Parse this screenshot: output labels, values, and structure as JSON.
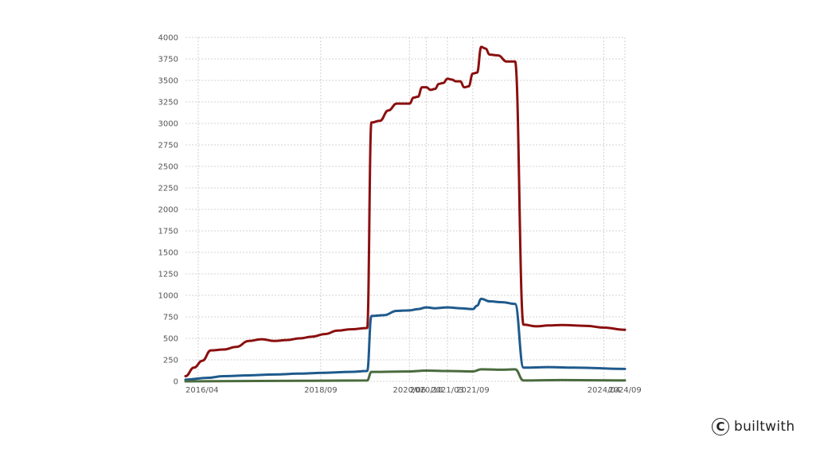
{
  "chart_data": {
    "type": "line",
    "title": "",
    "xlabel": "",
    "ylabel": "",
    "ylim": [
      0,
      4000
    ],
    "yticks": [
      0,
      250,
      500,
      750,
      1000,
      1250,
      1500,
      1750,
      2000,
      2250,
      2500,
      2750,
      3000,
      3250,
      3500,
      3750,
      4000
    ],
    "xlim": [
      "2016-01",
      "2024-09"
    ],
    "xticks": [
      {
        "label": "2016/04",
        "date": "2016-04"
      },
      {
        "label": "2018/09",
        "date": "2018-09"
      },
      {
        "label": "2020/06",
        "date": "2020-06"
      },
      {
        "label": "2020/10",
        "date": "2020-10"
      },
      {
        "label": "2021/03",
        "date": "2021-03"
      },
      {
        "label": "2021/09",
        "date": "2021-09"
      },
      {
        "label": "2024/04",
        "date": "2024-04"
      },
      {
        "label": "2024/09",
        "date": "2024-09"
      }
    ],
    "grid": true,
    "legend": "none",
    "series": [
      {
        "color": "#8b0f0f",
        "points": [
          [
            "2016-01",
            60
          ],
          [
            "2016-03",
            160
          ],
          [
            "2016-05",
            240
          ],
          [
            "2016-07",
            360
          ],
          [
            "2016-10",
            370
          ],
          [
            "2017-01",
            400
          ],
          [
            "2017-04",
            470
          ],
          [
            "2017-07",
            490
          ],
          [
            "2017-10",
            470
          ],
          [
            "2018-01",
            480
          ],
          [
            "2018-04",
            500
          ],
          [
            "2018-07",
            520
          ],
          [
            "2018-10",
            550
          ],
          [
            "2019-01",
            590
          ],
          [
            "2019-04",
            605
          ],
          [
            "2019-08",
            620
          ],
          [
            "2019-09",
            3010
          ],
          [
            "2019-11",
            3030
          ],
          [
            "2020-01",
            3150
          ],
          [
            "2020-03",
            3230
          ],
          [
            "2020-06",
            3230
          ],
          [
            "2020-07",
            3300
          ],
          [
            "2020-08",
            3310
          ],
          [
            "2020-09",
            3420
          ],
          [
            "2020-10",
            3420
          ],
          [
            "2020-11",
            3390
          ],
          [
            "2020-12",
            3400
          ],
          [
            "2021-01",
            3460
          ],
          [
            "2021-02",
            3470
          ],
          [
            "2021-03",
            3520
          ],
          [
            "2021-04",
            3510
          ],
          [
            "2021-05",
            3490
          ],
          [
            "2021-06",
            3490
          ],
          [
            "2021-07",
            3420
          ],
          [
            "2021-08",
            3430
          ],
          [
            "2021-09",
            3580
          ],
          [
            "2021-10",
            3590
          ],
          [
            "2021-11",
            3890
          ],
          [
            "2021-12",
            3870
          ],
          [
            "2022-01",
            3800
          ],
          [
            "2022-03",
            3790
          ],
          [
            "2022-05",
            3720
          ],
          [
            "2022-07",
            3720
          ],
          [
            "2022-09",
            660
          ],
          [
            "2022-12",
            640
          ],
          [
            "2023-03",
            650
          ],
          [
            "2023-06",
            655
          ],
          [
            "2023-12",
            645
          ],
          [
            "2024-04",
            625
          ],
          [
            "2024-09",
            600
          ]
        ]
      },
      {
        "color": "#1f5a8c",
        "points": [
          [
            "2016-01",
            20
          ],
          [
            "2016-06",
            40
          ],
          [
            "2016-10",
            60
          ],
          [
            "2017-04",
            70
          ],
          [
            "2017-10",
            80
          ],
          [
            "2018-04",
            90
          ],
          [
            "2018-10",
            100
          ],
          [
            "2019-04",
            110
          ],
          [
            "2019-08",
            120
          ],
          [
            "2019-09",
            760
          ],
          [
            "2019-12",
            770
          ],
          [
            "2020-03",
            820
          ],
          [
            "2020-06",
            825
          ],
          [
            "2020-08",
            840
          ],
          [
            "2020-10",
            860
          ],
          [
            "2020-12",
            850
          ],
          [
            "2021-03",
            860
          ],
          [
            "2021-06",
            850
          ],
          [
            "2021-09",
            840
          ],
          [
            "2021-10",
            880
          ],
          [
            "2021-11",
            960
          ],
          [
            "2022-01",
            930
          ],
          [
            "2022-04",
            920
          ],
          [
            "2022-07",
            900
          ],
          [
            "2022-09",
            160
          ],
          [
            "2023-03",
            165
          ],
          [
            "2023-09",
            160
          ],
          [
            "2024-09",
            145
          ]
        ]
      },
      {
        "color": "#4a6b3e",
        "points": [
          [
            "2016-01",
            0
          ],
          [
            "2017-06",
            5
          ],
          [
            "2019-08",
            10
          ],
          [
            "2019-09",
            110
          ],
          [
            "2020-06",
            115
          ],
          [
            "2020-10",
            125
          ],
          [
            "2021-03",
            120
          ],
          [
            "2021-09",
            115
          ],
          [
            "2021-11",
            140
          ],
          [
            "2022-04",
            135
          ],
          [
            "2022-07",
            140
          ],
          [
            "2022-09",
            10
          ],
          [
            "2023-06",
            15
          ],
          [
            "2024-09",
            10
          ]
        ]
      }
    ]
  },
  "brand": {
    "icon": "copyright-icon",
    "icon_glyph": "C",
    "text": "builtwith"
  }
}
